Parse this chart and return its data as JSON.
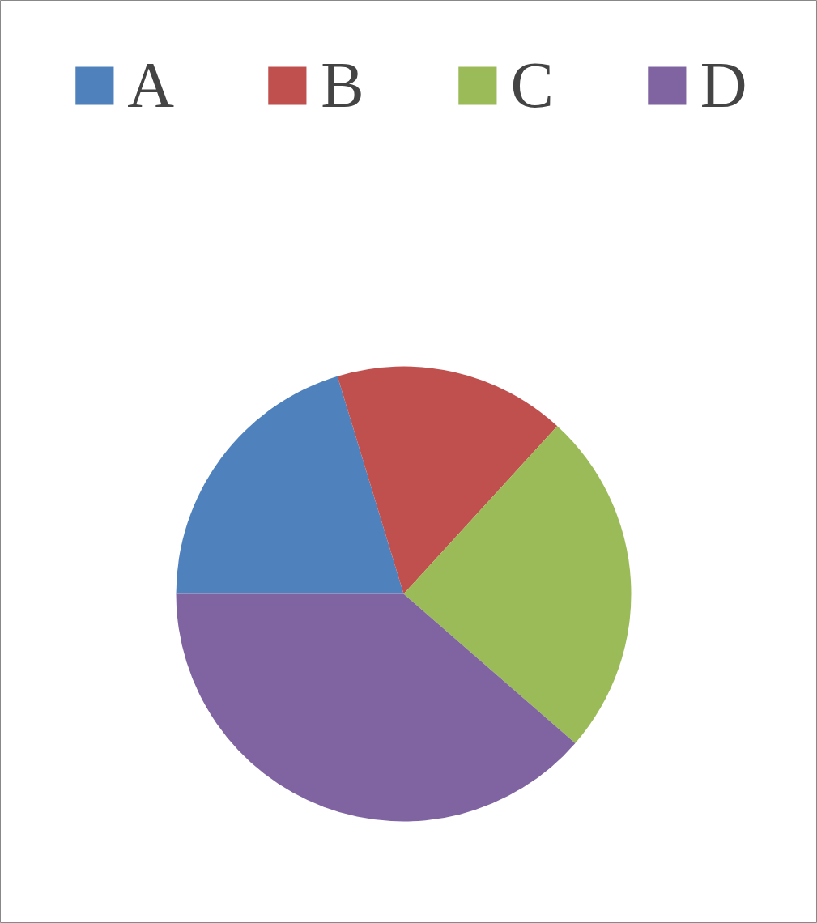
{
  "chart_data": {
    "type": "pie",
    "categories": [
      "A",
      "B",
      "C",
      "D"
    ],
    "values": [
      20.3,
      16.5,
      24.6,
      38.6
    ],
    "colors": [
      "#4f81bd",
      "#c0504d",
      "#9bbb59",
      "#8064a2"
    ],
    "legend": "top"
  }
}
